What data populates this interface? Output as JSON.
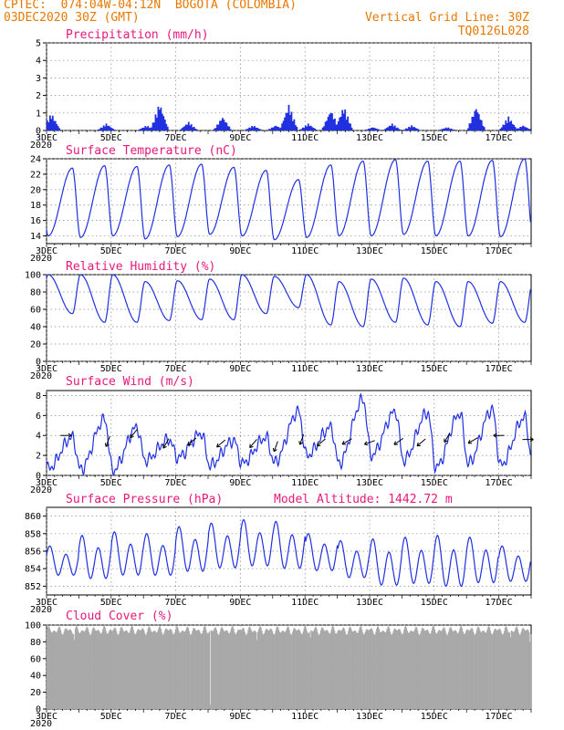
{
  "header": {
    "line1": "CPTEC:  074:04W-04:12N  BOGOTA (COLOMBIA)",
    "line2": "03DEC2020 30Z (GMT)",
    "grid_note": "Vertical Grid Line: 30Z",
    "code": "TQ0126L028"
  },
  "colors": {
    "header": "#e87800",
    "title": "#e8187a",
    "line": "#2030e0",
    "cloud": "#a8a8a8",
    "arrow": "#000000"
  },
  "x_axis": {
    "labels": [
      "3DEC",
      "5DEC",
      "7DEC",
      "9DEC",
      "11DEC",
      "13DEC",
      "15DEC",
      "17DEC"
    ],
    "label_days": [
      0,
      2,
      4,
      6,
      8,
      10,
      12,
      14
    ],
    "minor_label": "2020",
    "range_days": [
      0,
      15
    ]
  },
  "chart_data": [
    {
      "id": "precip",
      "type": "bar",
      "title": "Precipitation (mm/h)",
      "units": "mm/h",
      "ylim": [
        0,
        5
      ],
      "yticks": [
        0,
        1,
        2,
        3,
        4,
        5
      ],
      "events": [
        {
          "day": 0.15,
          "peak": 1.0
        },
        {
          "day": 1.85,
          "peak": 0.4
        },
        {
          "day": 3.1,
          "peak": 0.3
        },
        {
          "day": 3.5,
          "peak": 1.6
        },
        {
          "day": 4.4,
          "peak": 0.5
        },
        {
          "day": 5.45,
          "peak": 0.8
        },
        {
          "day": 6.4,
          "peak": 0.3
        },
        {
          "day": 7.1,
          "peak": 0.3
        },
        {
          "day": 7.5,
          "peak": 1.5
        },
        {
          "day": 8.1,
          "peak": 0.4
        },
        {
          "day": 8.8,
          "peak": 1.2
        },
        {
          "day": 9.2,
          "peak": 1.4
        },
        {
          "day": 10.1,
          "peak": 0.2
        },
        {
          "day": 10.7,
          "peak": 0.4
        },
        {
          "day": 11.3,
          "peak": 0.3
        },
        {
          "day": 12.4,
          "peak": 0.2
        },
        {
          "day": 13.3,
          "peak": 1.4
        },
        {
          "day": 14.3,
          "peak": 0.8
        },
        {
          "day": 14.75,
          "peak": 0.3
        }
      ]
    },
    {
      "id": "temp",
      "type": "line",
      "title": "Surface Temperature (nC)",
      "units": "C",
      "ylim": [
        13,
        24
      ],
      "yticks": [
        14,
        16,
        18,
        20,
        22,
        24
      ],
      "daily_max": [
        22.8,
        23.1,
        23.0,
        23.2,
        23.3,
        22.9,
        22.5,
        21.3,
        23.2,
        23.7,
        23.9,
        23.7,
        23.7,
        23.8,
        24.0
      ],
      "daily_min": [
        14.0,
        13.8,
        14.0,
        13.6,
        13.9,
        14.2,
        14.0,
        13.5,
        13.8,
        14.0,
        14.0,
        14.2,
        14.0,
        14.0,
        13.9
      ]
    },
    {
      "id": "rh",
      "type": "line",
      "title": "Relative Humidity (%)",
      "units": "%",
      "ylim": [
        0,
        100
      ],
      "yticks": [
        0,
        20,
        40,
        60,
        80,
        100
      ],
      "daily_max": [
        100,
        100,
        100,
        92,
        93,
        95,
        100,
        98,
        100,
        92,
        95,
        96,
        92,
        92,
        92
      ],
      "daily_min": [
        55,
        45,
        45,
        47,
        48,
        48,
        55,
        62,
        42,
        40,
        45,
        42,
        40,
        44,
        45
      ]
    },
    {
      "id": "wind",
      "type": "line",
      "title": "Surface Wind (m/s)",
      "units": "m/s",
      "ylim": [
        0,
        8.5
      ],
      "yticks": [
        0,
        2,
        4,
        6,
        8
      ],
      "daily_max": [
        3.8,
        5.6,
        4.8,
        3.6,
        4.2,
        3.5,
        3.8,
        6.4,
        4.8,
        7.6,
        6.4,
        6.3,
        6.2,
        6.6,
        5.8
      ],
      "daily_min": [
        0.7,
        0.6,
        0.5,
        1.5,
        1.8,
        1.0,
        1.2,
        1.3,
        2.0,
        1.2,
        2.0,
        1.5,
        0.8,
        1.2,
        1.0
      ],
      "wind_arrows": [
        {
          "day": 0.6,
          "speed": 4.0,
          "dir": 90
        },
        {
          "day": 1.9,
          "speed": 3.4,
          "dir": 200
        },
        {
          "day": 2.7,
          "speed": 4.2,
          "dir": 220
        },
        {
          "day": 3.7,
          "speed": 3.2,
          "dir": 210
        },
        {
          "day": 4.5,
          "speed": 3.4,
          "dir": 230
        },
        {
          "day": 5.4,
          "speed": 3.2,
          "dir": 230
        },
        {
          "day": 6.4,
          "speed": 3.2,
          "dir": 220
        },
        {
          "day": 7.1,
          "speed": 2.9,
          "dir": 200
        },
        {
          "day": 7.9,
          "speed": 3.6,
          "dir": 200
        },
        {
          "day": 8.5,
          "speed": 3.3,
          "dir": 230
        },
        {
          "day": 9.3,
          "speed": 3.4,
          "dir": 240
        },
        {
          "day": 10.0,
          "speed": 3.3,
          "dir": 250
        },
        {
          "day": 10.9,
          "speed": 3.4,
          "dir": 235
        },
        {
          "day": 11.6,
          "speed": 3.3,
          "dir": 230
        },
        {
          "day": 12.4,
          "speed": 3.8,
          "dir": 210
        },
        {
          "day": 13.2,
          "speed": 3.5,
          "dir": 240
        },
        {
          "day": 14.0,
          "speed": 4.0,
          "dir": 270
        },
        {
          "day": 14.9,
          "speed": 3.6,
          "dir": 90
        }
      ]
    },
    {
      "id": "pres",
      "type": "line",
      "title": "Surface Pressure (hPa)",
      "units": "hPa",
      "extra_label": "Model Altitude: 1442.72 m",
      "ylim": [
        851,
        861
      ],
      "yticks": [
        852,
        854,
        856,
        858,
        860
      ],
      "semidiurnal": [
        {
          "day": 0.0,
          "hi": 856.6,
          "lo": 852.8
        },
        {
          "day": 1.0,
          "hi": 857.8,
          "lo": 852.2
        },
        {
          "day": 2.0,
          "hi": 858.2,
          "lo": 852.6
        },
        {
          "day": 3.0,
          "hi": 858.0,
          "lo": 852.6
        },
        {
          "day": 4.0,
          "hi": 858.8,
          "lo": 853.0
        },
        {
          "day": 5.0,
          "hi": 859.2,
          "lo": 853.4
        },
        {
          "day": 6.0,
          "hi": 859.6,
          "lo": 853.6
        },
        {
          "day": 7.0,
          "hi": 859.4,
          "lo": 853.3
        },
        {
          "day": 8.0,
          "hi": 858.0,
          "lo": 853.2
        },
        {
          "day": 9.0,
          "hi": 857.2,
          "lo": 852.4
        },
        {
          "day": 10.0,
          "hi": 857.4,
          "lo": 851.4
        },
        {
          "day": 11.0,
          "hi": 857.6,
          "lo": 851.6
        },
        {
          "day": 12.0,
          "hi": 857.8,
          "lo": 851.2
        },
        {
          "day": 13.0,
          "hi": 857.6,
          "lo": 851.7
        },
        {
          "day": 14.0,
          "hi": 856.6,
          "lo": 852.0
        }
      ]
    },
    {
      "id": "cloud",
      "type": "area",
      "title": "Cloud Cover (%)",
      "units": "%",
      "ylim": [
        0,
        100
      ],
      "yticks": [
        0,
        20,
        40,
        60,
        80,
        100
      ],
      "typical_range": [
        88,
        99
      ],
      "dips": [
        {
          "day": 0.85,
          "value": 82
        },
        {
          "day": 5.05,
          "value": 5
        },
        {
          "day": 6.5,
          "value": 82
        },
        {
          "day": 8.15,
          "value": 85
        },
        {
          "day": 14.35,
          "value": 85
        },
        {
          "day": 14.95,
          "value": 80
        }
      ]
    }
  ]
}
